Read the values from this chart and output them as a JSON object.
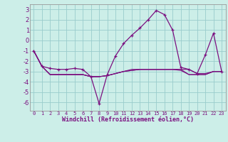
{
  "x": [
    0,
    1,
    2,
    3,
    4,
    5,
    6,
    7,
    8,
    9,
    10,
    11,
    12,
    13,
    14,
    15,
    16,
    17,
    18,
    19,
    20,
    21,
    22,
    23
  ],
  "windchill": [
    -1,
    -2.5,
    -2.7,
    -2.8,
    -2.8,
    -2.7,
    -2.8,
    -3.5,
    -6.1,
    -3.3,
    -1.5,
    -0.3,
    0.5,
    1.2,
    2.0,
    2.9,
    2.5,
    1.0,
    -2.6,
    -2.8,
    -3.2,
    -1.4,
    0.7,
    -3.0
  ],
  "line2": [
    -1.0,
    -2.5,
    -3.3,
    -3.3,
    -3.3,
    -3.3,
    -3.3,
    -3.5,
    -3.5,
    -3.4,
    -3.2,
    -3.0,
    -2.9,
    -2.8,
    -2.8,
    -2.8,
    -2.8,
    -2.8,
    -2.8,
    -2.8,
    -3.2,
    -3.2,
    -3.0,
    -3.0
  ],
  "line3": [
    -1.0,
    -2.5,
    -3.3,
    -3.3,
    -3.3,
    -3.3,
    -3.3,
    -3.5,
    -3.5,
    -3.4,
    -3.2,
    -3.0,
    -2.8,
    -2.8,
    -2.8,
    -2.8,
    -2.8,
    -2.8,
    -2.8,
    -3.3,
    -3.3,
    -3.3,
    -3.0,
    -3.0
  ],
  "line4": [
    -1.0,
    -2.5,
    -3.3,
    -3.3,
    -3.3,
    -3.3,
    -3.3,
    -3.5,
    -3.5,
    -3.4,
    -3.2,
    -3.0,
    -2.9,
    -2.8,
    -2.8,
    -2.8,
    -2.8,
    -2.8,
    -2.9,
    -3.3,
    -3.3,
    -3.3,
    -3.0,
    -3.0
  ],
  "line_color": "#7b1080",
  "bg_color": "#cceee8",
  "grid_color": "#99cccc",
  "xlabel": "Windchill (Refroidissement éolien,°C)",
  "ylim": [
    -6.8,
    3.5
  ],
  "yticks": [
    -6,
    -5,
    -4,
    -3,
    -2,
    -1,
    0,
    1,
    2,
    3
  ],
  "spine_color": "#999999"
}
